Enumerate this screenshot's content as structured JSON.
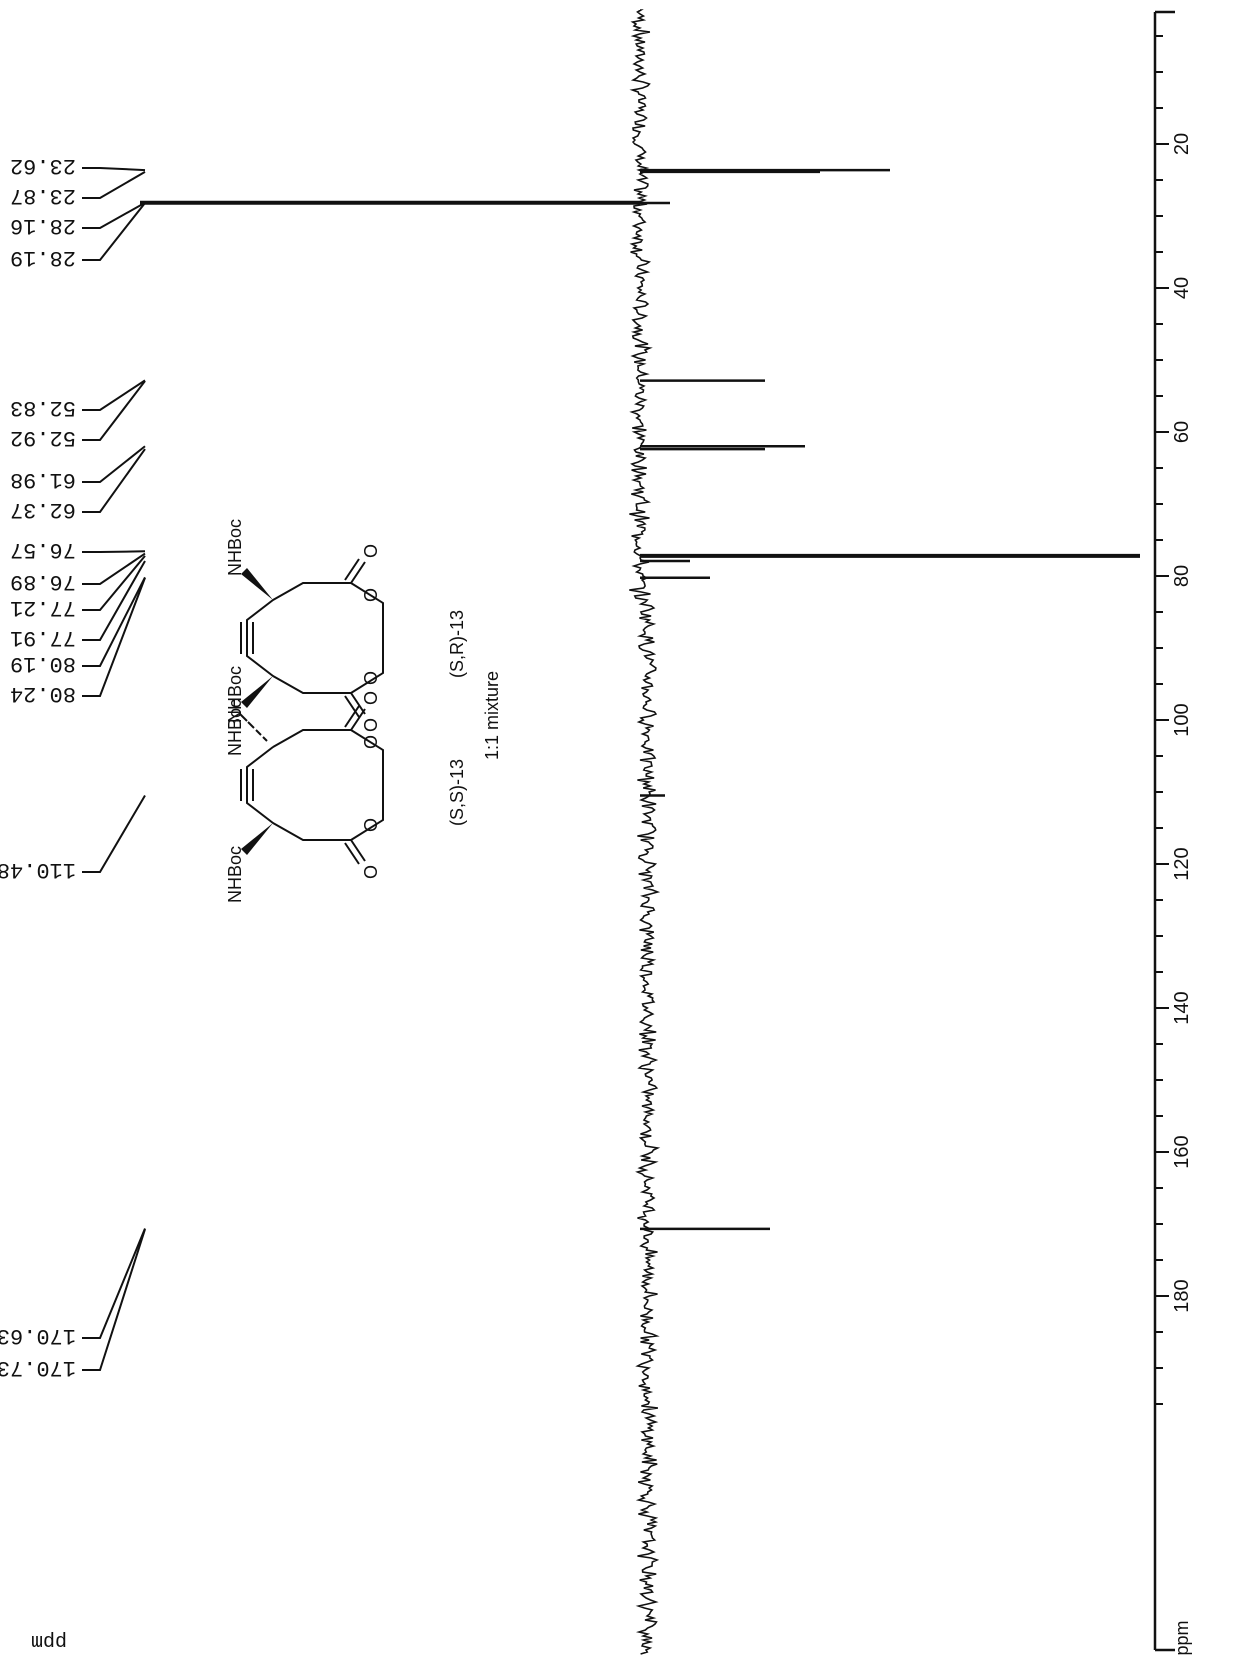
{
  "chart_data": {
    "type": "line",
    "title": "",
    "xlabel": "ppm",
    "ylabel": "",
    "xlim": [
      0,
      196
    ],
    "axis_ticks": [
      "20",
      "40",
      "60",
      "80",
      "100",
      "120",
      "140",
      "160",
      "180"
    ],
    "axis_unit": "ppm",
    "corner_unit": "ppm",
    "peak_labels": [
      {
        "text": "23.62",
        "ppm": 23.62
      },
      {
        "text": "23.87",
        "ppm": 23.87
      },
      {
        "text": "28.16",
        "ppm": 28.16
      },
      {
        "text": "28.19",
        "ppm": 28.19
      },
      {
        "text": "52.83",
        "ppm": 52.83
      },
      {
        "text": "52.92",
        "ppm": 52.92
      },
      {
        "text": "61.98",
        "ppm": 61.98
      },
      {
        "text": "62.37",
        "ppm": 62.37
      },
      {
        "text": "76.57",
        "ppm": 76.57
      },
      {
        "text": "76.89",
        "ppm": 76.89
      },
      {
        "text": "77.21",
        "ppm": 77.21
      },
      {
        "text": "77.91",
        "ppm": 77.91
      },
      {
        "text": "80.19",
        "ppm": 80.19
      },
      {
        "text": "80.24",
        "ppm": 80.24
      },
      {
        "text": "110.48",
        "ppm": 110.48
      },
      {
        "text": "170.63",
        "ppm": 170.63
      },
      {
        "text": "170.73",
        "ppm": 170.73
      }
    ],
    "peaks": [
      {
        "ppm": 23.62,
        "intensity": 0.5
      },
      {
        "ppm": 23.87,
        "intensity": 0.36
      },
      {
        "ppm": 28.16,
        "intensity": 1.0
      },
      {
        "ppm": 28.19,
        "intensity": 0.06
      },
      {
        "ppm": 52.87,
        "intensity": 0.25
      },
      {
        "ppm": 61.98,
        "intensity": 0.33
      },
      {
        "ppm": 62.37,
        "intensity": 0.25
      },
      {
        "ppm": 77.21,
        "intensity": 1.0
      },
      {
        "ppm": 77.91,
        "intensity": 0.1
      },
      {
        "ppm": 80.24,
        "intensity": 0.14
      },
      {
        "ppm": 110.48,
        "intensity": 0.05
      },
      {
        "ppm": 170.68,
        "intensity": 0.26
      }
    ]
  },
  "structures": {
    "substituent_label": "NHBoc",
    "ring_oxygen": "O",
    "carbonyl_oxygen": "O",
    "compound_sr": "(S,R)-13",
    "compound_ss": "(S,S)-13",
    "mixture": "1:1 mixture"
  }
}
